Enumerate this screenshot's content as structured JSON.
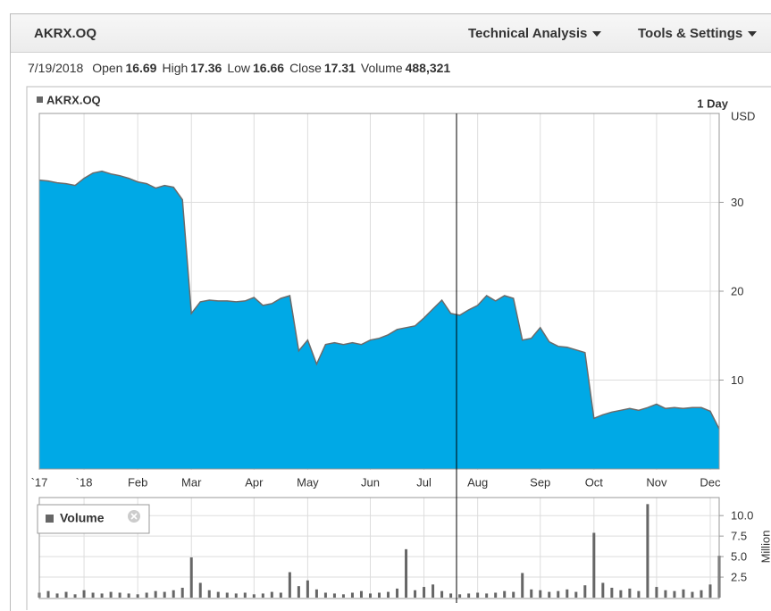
{
  "header": {
    "symbol": "AKRX.OQ",
    "menus": [
      "Technical Analysis",
      "Tools & Settings"
    ]
  },
  "quote": {
    "date": "7/19/2018",
    "fields": [
      {
        "label": "Open",
        "value": "16.69"
      },
      {
        "label": "High",
        "value": "17.36"
      },
      {
        "label": "Low",
        "value": "16.66"
      },
      {
        "label": "Close",
        "value": "17.31"
      },
      {
        "label": "Volume",
        "value": "488,321"
      }
    ]
  },
  "chart_data": [
    {
      "type": "area",
      "title": "AKRX.OQ",
      "interval": "1 Day",
      "y_label": "USD",
      "categories": [
        "`17",
        null,
        null,
        null,
        null,
        "`18",
        null,
        null,
        null,
        null,
        null,
        "Feb",
        null,
        null,
        null,
        null,
        null,
        "Mar",
        null,
        null,
        null,
        null,
        null,
        null,
        "Apr",
        null,
        null,
        null,
        null,
        null,
        "May",
        null,
        null,
        null,
        null,
        null,
        null,
        "Jun",
        null,
        null,
        null,
        null,
        null,
        "Jul",
        null,
        null,
        null,
        null,
        null,
        "Aug",
        null,
        null,
        null,
        null,
        null,
        null,
        "Sep",
        null,
        null,
        null,
        null,
        null,
        "Oct",
        null,
        null,
        null,
        null,
        null,
        null,
        "Nov",
        null,
        null,
        null,
        null,
        null,
        "Dec",
        null
      ],
      "values": [
        32.5,
        32.4,
        32.2,
        32.1,
        31.9,
        32.7,
        33.3,
        33.5,
        33.2,
        33.0,
        32.7,
        32.3,
        32.1,
        31.6,
        31.9,
        31.7,
        30.3,
        17.5,
        18.8,
        19.0,
        18.9,
        18.9,
        18.8,
        18.9,
        19.3,
        18.4,
        18.6,
        19.2,
        19.5,
        13.3,
        14.5,
        11.8,
        14.0,
        14.2,
        14.0,
        14.2,
        14.0,
        14.5,
        14.7,
        15.1,
        15.7,
        15.9,
        16.1,
        17.0,
        18.0,
        19.0,
        17.5,
        17.3,
        17.9,
        18.4,
        19.5,
        18.9,
        19.5,
        19.2,
        14.5,
        14.7,
        15.9,
        14.3,
        13.8,
        13.7,
        13.4,
        13.1,
        5.7,
        6.1,
        6.4,
        6.6,
        6.8,
        6.6,
        6.9,
        7.3,
        6.8,
        6.9,
        6.8,
        6.9,
        6.9,
        6.5,
        4.5
      ],
      "color": "#00a9e6",
      "line_color": "#6b6b6b",
      "ylim": [
        0,
        40
      ],
      "yticks": [
        10,
        20,
        30
      ],
      "grid": true
    },
    {
      "type": "bar",
      "title": "Volume",
      "y_label": "Million",
      "values": [
        0.6,
        0.8,
        0.5,
        0.7,
        0.4,
        0.9,
        0.6,
        0.5,
        0.7,
        0.6,
        0.5,
        0.4,
        0.6,
        0.8,
        0.7,
        0.9,
        1.2,
        4.9,
        1.8,
        0.9,
        0.7,
        0.6,
        0.5,
        0.6,
        0.4,
        0.5,
        0.7,
        0.6,
        3.1,
        1.4,
        2.1,
        1.0,
        0.6,
        0.5,
        0.4,
        0.6,
        0.8,
        0.5,
        0.6,
        0.7,
        1.1,
        5.9,
        0.9,
        1.3,
        1.6,
        0.8,
        0.5,
        0.4,
        0.5,
        0.6,
        0.5,
        0.6,
        0.8,
        0.7,
        3.0,
        1.0,
        0.9,
        0.7,
        0.8,
        1.0,
        0.7,
        1.5,
        7.9,
        1.8,
        1.2,
        0.9,
        1.1,
        0.8,
        11.4,
        1.3,
        0.9,
        0.8,
        1.0,
        0.7,
        0.9,
        1.6,
        5.1
      ],
      "color": "#666666",
      "ylim": [
        0,
        12.2
      ],
      "yticks": [
        2.5,
        {
          "value": 5,
          "label": "5.0"
        },
        7.5,
        {
          "value": 10,
          "label": "10.0"
        }
      ],
      "grid": true
    }
  ]
}
